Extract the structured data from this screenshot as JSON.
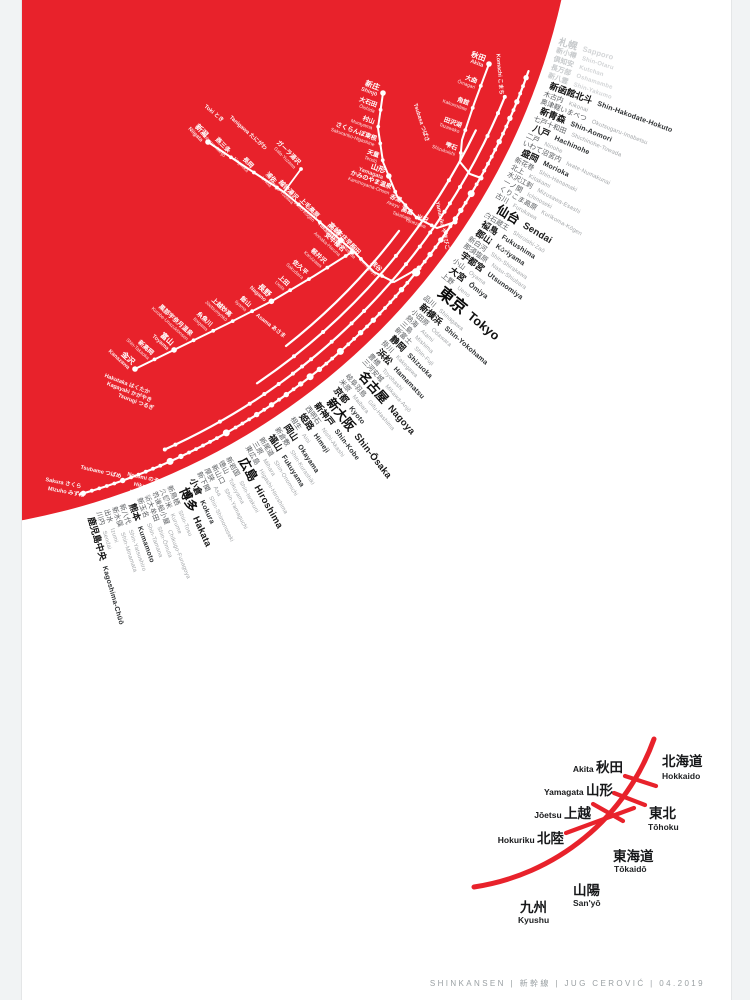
{
  "poster": {
    "red": "#e8222b",
    "background": "#ffffff",
    "frame_background": "#f1f3f4",
    "footer": "SHINKANSEN | 新幹線 | JUG CEROVIĆ | 04.2019"
  },
  "map": {
    "outer_stations": [
      {
        "jp": "札幌",
        "en": "Sapporo",
        "t": 0
      },
      {
        "jp": "新小樽",
        "en": "Shin-Otaru",
        "t": 0
      },
      {
        "jp": "倶知安",
        "en": "Kutchan",
        "t": 0
      },
      {
        "jp": "長万部",
        "en": "Oshamambe",
        "t": 0
      },
      {
        "jp": "新八雲",
        "en": "Shin-Yakumo",
        "t": 0
      },
      {
        "jp": "新函館北斗",
        "en": "Shin-Hakodate-Hokuto",
        "t": 2
      },
      {
        "jp": "木古内",
        "en": "Kikonai",
        "t": 1
      },
      {
        "jp": "奥津軽いまべつ",
        "en": "Okutsugaru-Imabetsu",
        "t": 1
      },
      {
        "jp": "新青森",
        "en": "Shin-Aomori",
        "t": 2
      },
      {
        "jp": "七戸十和田",
        "en": "Shichinohe-Towada",
        "t": 1
      },
      {
        "jp": "八戸",
        "en": "Hachinohe",
        "t": 2
      },
      {
        "jp": "二戸",
        "en": "Ninohe",
        "t": 1
      },
      {
        "jp": "いわて沼宮内",
        "en": "Iwate-Numakunai",
        "t": 1
      },
      {
        "jp": "盛岡",
        "en": "Morioka",
        "t": 2
      },
      {
        "jp": "新花巻",
        "en": "Shin-Hanamaki",
        "t": 1
      },
      {
        "jp": "北上",
        "en": "Kitakami",
        "t": 1
      },
      {
        "jp": "水沢江刺",
        "en": "Mizusawa-Esashi",
        "t": 1
      },
      {
        "jp": "一ノ関",
        "en": "Ichinoseki",
        "t": 1
      },
      {
        "jp": "くりこま高原",
        "en": "Kurikoma-Kōgen",
        "t": 1
      },
      {
        "jp": "古川",
        "en": "Furukawa",
        "t": 1
      },
      {
        "jp": "仙台",
        "en": "Sendai",
        "t": 3
      },
      {
        "jp": "白石蔵王",
        "en": "Shiroishi-Zaō",
        "t": 1
      },
      {
        "jp": "福島",
        "en": "Fukushima",
        "t": 2
      },
      {
        "jp": "郡山",
        "en": "Kōriyama",
        "t": 2
      },
      {
        "jp": "新白河",
        "en": "Shin-Shirakawa",
        "t": 1
      },
      {
        "jp": "那須塩原",
        "en": "Nasu-Shiobara",
        "t": 1
      },
      {
        "jp": "宇都宮",
        "en": "Utsunomiya",
        "t": 2
      },
      {
        "jp": "小山",
        "en": "Oyama",
        "t": 1
      },
      {
        "jp": "大宮",
        "en": "Ōmiya",
        "t": 2
      },
      {
        "jp": "上野",
        "en": "Ueno",
        "t": 1
      },
      {
        "jp": "東京",
        "en": "Tokyo",
        "t": 4
      },
      {
        "jp": "品川",
        "en": "Shinagawa",
        "t": 1
      },
      {
        "jp": "新横浜",
        "en": "Shin-Yokohama",
        "t": 2
      },
      {
        "jp": "小田原",
        "en": "Odawara",
        "t": 1
      },
      {
        "jp": "熱海",
        "en": "Atami",
        "t": 1
      },
      {
        "jp": "三島",
        "en": "Mishima",
        "t": 1
      },
      {
        "jp": "新富士",
        "en": "Shin-Fuji",
        "t": 1
      },
      {
        "jp": "静岡",
        "en": "Shizuoka",
        "t": 2
      },
      {
        "jp": "掛川",
        "en": "Kakegawa",
        "t": 1
      },
      {
        "jp": "浜松",
        "en": "Hamamatsu",
        "t": 2
      },
      {
        "jp": "豊橋",
        "en": "Toyohashi",
        "t": 1
      },
      {
        "jp": "三河安城",
        "en": "Mikawa-Anjō",
        "t": 1
      },
      {
        "jp": "名古屋",
        "en": "Nagoya",
        "t": 3
      },
      {
        "jp": "岐阜羽島",
        "en": "Gifu-Hashima",
        "t": 1
      },
      {
        "jp": "米原",
        "en": "Maibara",
        "t": 1
      },
      {
        "jp": "京都",
        "en": "Kyoto",
        "t": 2
      },
      {
        "jp": "新大阪",
        "en": "Shin-Ōsaka",
        "t": 3
      },
      {
        "jp": "新神戸",
        "en": "Shin-Kobe",
        "t": 2
      },
      {
        "jp": "西明石",
        "en": "Nishi-Akashi",
        "t": 1
      },
      {
        "jp": "姫路",
        "en": "Himeji",
        "t": 2
      },
      {
        "jp": "相生",
        "en": "Aioi",
        "t": 1
      },
      {
        "jp": "岡山",
        "en": "Okayama",
        "t": 2
      },
      {
        "jp": "新倉敷",
        "en": "Shin-Kurashiki",
        "t": 1
      },
      {
        "jp": "福山",
        "en": "Fukuyama",
        "t": 2
      },
      {
        "jp": "新尾道",
        "en": "Shin-Onomichi",
        "t": 1
      },
      {
        "jp": "三原",
        "en": "Mihara",
        "t": 1
      },
      {
        "jp": "東広島",
        "en": "Higashi-Hiroshima",
        "t": 1
      },
      {
        "jp": "広島",
        "en": "Hiroshima",
        "t": 3
      },
      {
        "jp": "新岩国",
        "en": "Shin-Iwakuni",
        "t": 1
      },
      {
        "jp": "徳山",
        "en": "Tokuyama",
        "t": 1
      },
      {
        "jp": "新山口",
        "en": "Shin-Yamaguchi",
        "t": 1
      },
      {
        "jp": "厚狭",
        "en": "Asa",
        "t": 1
      },
      {
        "jp": "新下関",
        "en": "Shin-Shimonoseki",
        "t": 1
      },
      {
        "jp": "小倉",
        "en": "Kokura",
        "t": 2
      },
      {
        "jp": "博多",
        "en": "Hakata",
        "t": 3
      },
      {
        "jp": "新鳥栖",
        "en": "Shin-Tosu",
        "t": 1
      },
      {
        "jp": "久留米",
        "en": "Kurume",
        "t": 1
      },
      {
        "jp": "筑後船小屋",
        "en": "Chikugo-Funagoya",
        "t": 1
      },
      {
        "jp": "新大牟田",
        "en": "Shin-Ōmuta",
        "t": 1
      },
      {
        "jp": "新玉名",
        "en": "Shin-Tamana",
        "t": 1
      },
      {
        "jp": "熊本",
        "en": "Kumamoto",
        "t": 2
      },
      {
        "jp": "新八代",
        "en": "Shin-Yatsushiro",
        "t": 1
      },
      {
        "jp": "新水俣",
        "en": "Shin-Minamata",
        "t": 1
      },
      {
        "jp": "出水",
        "en": "Izumi",
        "t": 1
      },
      {
        "jp": "川内",
        "en": "Sendai",
        "t": 1
      },
      {
        "jp": "鹿児島中央",
        "en": "Kagoshima-Chūō",
        "t": 2
      }
    ],
    "branches": {
      "akita": {
        "stations": [
          {
            "jp": "秋田",
            "en": "Akita",
            "t": 2
          },
          {
            "jp": "大曲",
            "en": "Ōmagari",
            "t": 1
          },
          {
            "jp": "角館",
            "en": "Kakunodate",
            "t": 1
          },
          {
            "jp": "田沢湖",
            "en": "Tazawako",
            "t": 1
          },
          {
            "jp": "雫石",
            "en": "Shizukuishi",
            "t": 1
          }
        ]
      },
      "yamagata": {
        "stations": [
          {
            "jp": "新庄",
            "en": "Shinjō",
            "t": 2
          },
          {
            "jp": "大石田",
            "en": "Ōishida",
            "t": 1
          },
          {
            "jp": "村山",
            "en": "Murayama",
            "t": 1
          },
          {
            "jp": "さくらんぼ東根",
            "en": "Sakuranbo-Higashine",
            "t": 1
          },
          {
            "jp": "天童",
            "en": "Tendō",
            "t": 1
          },
          {
            "jp": "山形",
            "en": "Yamagata",
            "t": 2
          },
          {
            "jp": "かみのやま温泉",
            "en": "Kaminoyama-Onsen",
            "t": 1
          },
          {
            "jp": "赤湯",
            "en": "Akayu",
            "t": 1
          },
          {
            "jp": "高畠",
            "en": "Takahata",
            "t": 1
          },
          {
            "jp": "米沢",
            "en": "Yonezawa",
            "t": 1
          }
        ]
      },
      "joetsu": {
        "stations": [
          {
            "jp": "新潟",
            "en": "Niigata",
            "t": 2
          },
          {
            "jp": "燕三条",
            "en": "Tsubame-Sanjō",
            "t": 1
          },
          {
            "jp": "長岡",
            "en": "Nagaoka",
            "t": 1
          },
          {
            "jp": "浦佐",
            "en": "Urasa",
            "t": 1
          },
          {
            "jp": "越後湯沢",
            "en": "Echigo-Yuzawa",
            "t": 1
          },
          {
            "jp": "上毛高原",
            "en": "Jōmō-Kōgen",
            "t": 1
          },
          {
            "jp": "高崎",
            "en": "Takasaki",
            "t": 2
          },
          {
            "jp": "本庄早稲田",
            "en": "Honjō-Waseda",
            "t": 1
          },
          {
            "jp": "熊谷",
            "en": "Kumagaya",
            "t": 1
          }
        ]
      },
      "gala_spur": {
        "jp": "ガーラ湯沢",
        "en": "Gala-Yuzawa",
        "t": 1
      },
      "hokuriku": {
        "stations": [
          {
            "jp": "金沢",
            "en": "Kanazawa",
            "t": 2
          },
          {
            "jp": "新高岡",
            "en": "Shin-Takaoka",
            "t": 1
          },
          {
            "jp": "富山",
            "en": "Toyama",
            "t": 2
          },
          {
            "jp": "黒部宇奈月温泉",
            "en": "Kurobe-Unazukionsen",
            "t": 1
          },
          {
            "jp": "糸魚川",
            "en": "Itoigawa",
            "t": 1
          },
          {
            "jp": "上越妙高",
            "en": "Jōetsumyōkō",
            "t": 1
          },
          {
            "jp": "飯山",
            "en": "Iiyama",
            "t": 1
          },
          {
            "jp": "長野",
            "en": "Nagano",
            "t": 2
          },
          {
            "jp": "上田",
            "en": "Ueda",
            "t": 1
          },
          {
            "jp": "佐久平",
            "en": "Sakudaira",
            "t": 1
          },
          {
            "jp": "軽井沢",
            "en": "Karuizawa",
            "t": 1
          },
          {
            "jp": "安中榛名",
            "en": "Annaka-Haruna",
            "t": 1
          }
        ]
      }
    },
    "services": [
      {
        "id": "komachi",
        "label": "Komachi こまち"
      },
      {
        "id": "hayabusa",
        "label": "Hayabusa はやぶさ"
      },
      {
        "id": "hayate",
        "label": "Hayate はやて"
      },
      {
        "id": "yamabiko",
        "label": "Yamabiko やまびこ"
      },
      {
        "id": "tsubasa",
        "label": "Tsubasa つばさ"
      },
      {
        "id": "toki",
        "label": "Toki とき"
      },
      {
        "id": "tanigawa",
        "label": "Tanigawa たにがわ"
      },
      {
        "id": "asama",
        "label": "Asama あさま"
      },
      {
        "id": "hakutaka",
        "label": "Hakutaka はくたか"
      },
      {
        "id": "kagayaki",
        "label": "Kagayaki かがやき"
      },
      {
        "id": "tsurugi",
        "label": "Tsurugi つるぎ"
      },
      {
        "id": "nozomi",
        "label": "Nozomi のぞみ"
      },
      {
        "id": "hikari",
        "label": "Hikari ひかり"
      },
      {
        "id": "kodama",
        "label": "Kodama こだま"
      },
      {
        "id": "tsubame",
        "label": "Tsubame つばめ"
      },
      {
        "id": "sakura",
        "label": "Sakura さくら"
      },
      {
        "id": "mizuho",
        "label": "Mizuho みずほ"
      }
    ]
  },
  "legend": {
    "branch_lines": [
      {
        "id": "akita",
        "en": "Akita",
        "jp": "秋田"
      },
      {
        "id": "yamagata",
        "en": "Yamagata",
        "jp": "山形"
      },
      {
        "id": "joetsu",
        "en": "Jōetsu",
        "jp": "上越"
      },
      {
        "id": "hokuriku",
        "en": "Hokuriku",
        "jp": "北陸"
      }
    ],
    "through_lines": [
      {
        "id": "hokkaido",
        "jp": "北海道",
        "en": "Hokkaido"
      },
      {
        "id": "tohoku",
        "jp": "東北",
        "en": "Tōhoku"
      },
      {
        "id": "tokaido",
        "jp": "東海道",
        "en": "Tōkaidō"
      },
      {
        "id": "sanyo",
        "jp": "山陽",
        "en": "San'yō"
      },
      {
        "id": "kyushu",
        "jp": "九州",
        "en": "Kyushu"
      }
    ]
  }
}
